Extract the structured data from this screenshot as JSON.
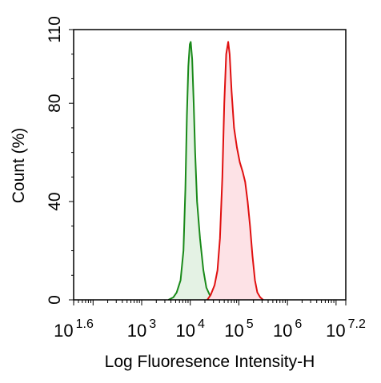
{
  "chart_data": {
    "type": "area",
    "xlabel": "Log Fluoresence Intensity-H",
    "ylabel": "Count  (%)",
    "xscale": "log",
    "xlim_log10": [
      1.6,
      7.2
    ],
    "ylim": [
      0,
      110
    ],
    "x_ticks": [
      {
        "base": "10",
        "exp": "1.6",
        "log": 1.6
      },
      {
        "base": "10",
        "exp": "3",
        "log": 3
      },
      {
        "base": "10",
        "exp": "4",
        "log": 4
      },
      {
        "base": "10",
        "exp": "5",
        "log": 5
      },
      {
        "base": "10",
        "exp": "6",
        "log": 6
      },
      {
        "base": "10",
        "exp": "7.2",
        "log": 7.2
      }
    ],
    "y_ticks": [
      {
        "label": "0",
        "value": 0
      },
      {
        "label": "40",
        "value": 40
      },
      {
        "label": "80",
        "value": 80
      },
      {
        "label": "110",
        "value": 110
      }
    ],
    "grid": false,
    "series": [
      {
        "color": "#1a8a1a",
        "fill": "#e4f2e4",
        "points": [
          [
            3.55,
            0
          ],
          [
            3.65,
            1
          ],
          [
            3.72,
            3
          ],
          [
            3.8,
            8
          ],
          [
            3.86,
            20
          ],
          [
            3.9,
            45
          ],
          [
            3.93,
            75
          ],
          [
            3.96,
            95
          ],
          [
            3.99,
            104
          ],
          [
            4.01,
            105
          ],
          [
            4.04,
            98
          ],
          [
            4.07,
            80
          ],
          [
            4.1,
            60
          ],
          [
            4.14,
            40
          ],
          [
            4.2,
            25
          ],
          [
            4.27,
            12
          ],
          [
            4.33,
            5
          ],
          [
            4.4,
            2
          ],
          [
            4.47,
            0
          ]
        ]
      },
      {
        "color": "#e01010",
        "fill": "#fde2e6",
        "points": [
          [
            4.35,
            0
          ],
          [
            4.42,
            2
          ],
          [
            4.5,
            6
          ],
          [
            4.56,
            12
          ],
          [
            4.61,
            25
          ],
          [
            4.66,
            50
          ],
          [
            4.7,
            80
          ],
          [
            4.74,
            100
          ],
          [
            4.78,
            105
          ],
          [
            4.81,
            100
          ],
          [
            4.85,
            85
          ],
          [
            4.9,
            70
          ],
          [
            4.96,
            62
          ],
          [
            5.02,
            56
          ],
          [
            5.08,
            52
          ],
          [
            5.13,
            48
          ],
          [
            5.18,
            40
          ],
          [
            5.23,
            30
          ],
          [
            5.28,
            18
          ],
          [
            5.33,
            8
          ],
          [
            5.38,
            3
          ],
          [
            5.44,
            1
          ],
          [
            5.5,
            0
          ]
        ]
      }
    ]
  }
}
